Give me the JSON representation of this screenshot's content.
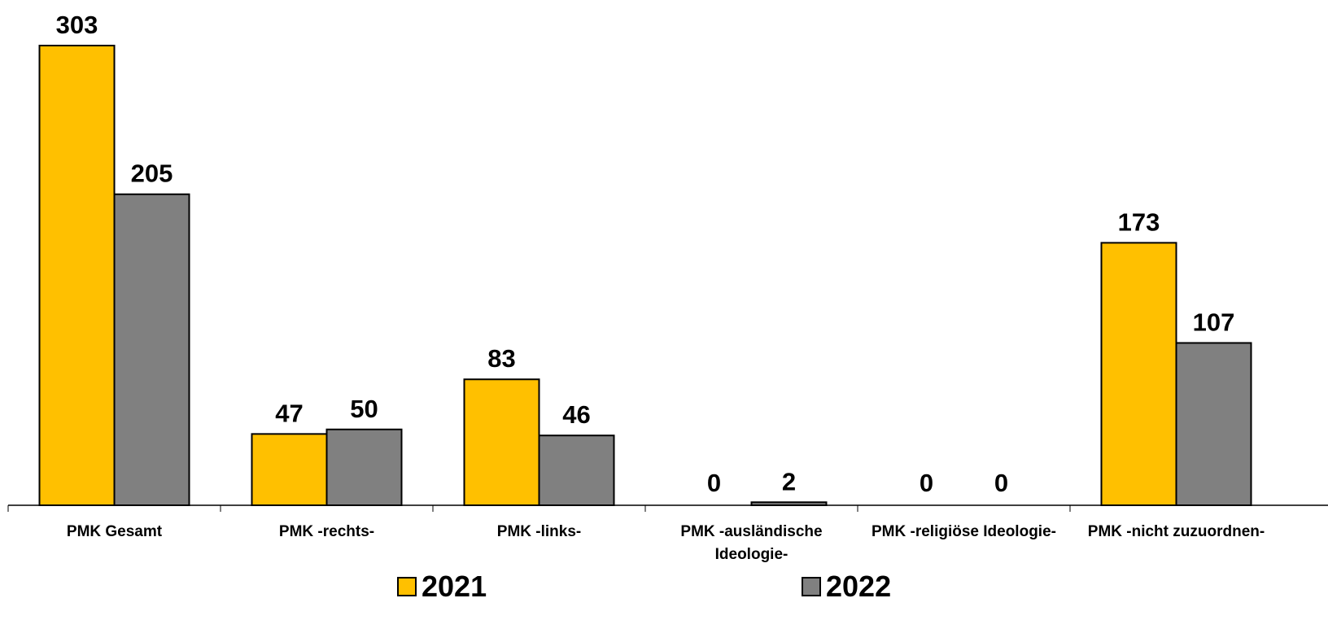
{
  "chart_data": {
    "type": "bar",
    "categories": [
      "PMK Gesamt",
      "PMK -rechts-",
      "PMK -links-",
      "PMK -ausländische Ideologie-",
      "PMK -religiöse Ideologie-",
      "PMK -nicht zuzuordnen-"
    ],
    "category_lines": [
      [
        "PMK Gesamt"
      ],
      [
        "PMK -rechts-"
      ],
      [
        "PMK -links-"
      ],
      [
        "PMK -ausländische",
        "Ideologie-"
      ],
      [
        "PMK -religiöse Ideologie-"
      ],
      [
        "PMK -nicht zuzuordnen-"
      ]
    ],
    "series": [
      {
        "name": "2021",
        "values": [
          303,
          47,
          83,
          0,
          0,
          173
        ],
        "color": "#FFC000"
      },
      {
        "name": "2022",
        "values": [
          205,
          50,
          46,
          2,
          0,
          107
        ],
        "color": "#808080"
      }
    ],
    "ylim": [
      0,
      303
    ],
    "title": "",
    "xlabel": "",
    "ylabel": "",
    "grid": false,
    "legend_position": "bottom"
  }
}
